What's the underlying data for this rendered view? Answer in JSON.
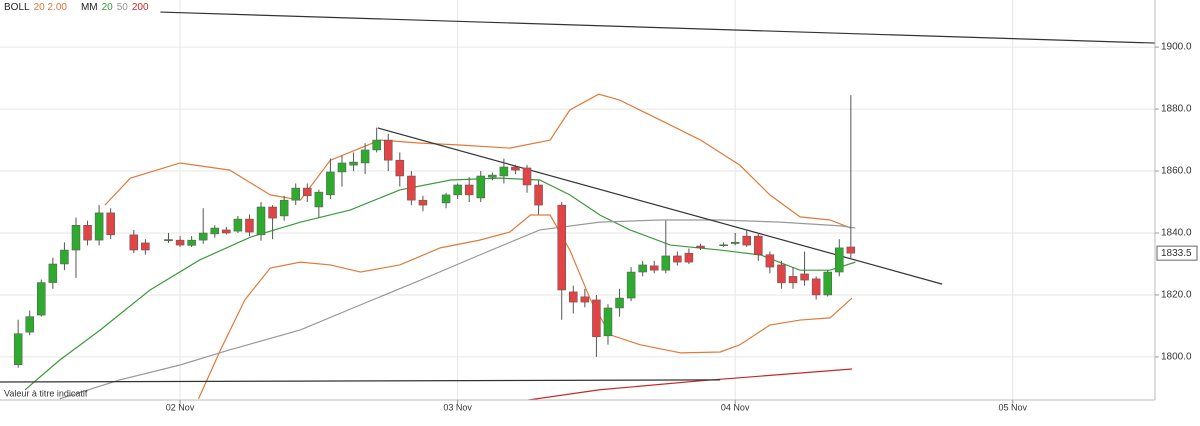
{
  "chart_data": {
    "type": "candlestick",
    "legend": [
      {
        "label": "BOLL",
        "params": [
          {
            "text": "20 2.00",
            "color": "#e07a3a"
          }
        ]
      },
      {
        "label": "MM",
        "params": [
          {
            "text": "20",
            "color": "#3c9a3c"
          },
          {
            "text": "50",
            "color": "#999999"
          },
          {
            "text": "200",
            "color": "#c62828"
          }
        ]
      }
    ],
    "note": "Valeur à titre indicatif",
    "last_price": 1833.5,
    "xlim": [
      -15.57,
      84.3
    ],
    "xticks": [
      {
        "value": 0,
        "label": "02 Nov"
      },
      {
        "value": 24,
        "label": "03 Nov"
      },
      {
        "value": 48,
        "label": "04 Nov"
      },
      {
        "value": 72,
        "label": "05 Nov"
      }
    ],
    "ylim": [
      1786.1,
      1915.2
    ],
    "yticks": [
      {
        "value": 1800,
        "label": "1800.0"
      },
      {
        "value": 1820,
        "label": "1820.0"
      },
      {
        "value": 1840,
        "label": "1840.0"
      },
      {
        "value": 1860,
        "label": "1860.0"
      },
      {
        "value": 1880,
        "label": "1880.0"
      },
      {
        "value": 1900,
        "label": "1900.0"
      }
    ],
    "grid": true,
    "up_color": "#2eaa2e",
    "down_color": "#e04444",
    "candles": {
      "x": [
        -14,
        -13,
        -12,
        -11,
        -10,
        -9,
        -8,
        -7,
        -6,
        -4,
        -3,
        -1,
        0,
        1,
        2,
        3,
        4,
        5,
        6,
        7,
        8,
        9,
        10,
        11,
        12,
        13,
        14,
        15,
        16,
        17,
        18,
        19,
        20,
        21,
        23,
        24,
        25,
        26,
        27,
        28,
        29,
        30,
        31,
        33,
        34,
        35,
        36,
        37,
        38,
        39,
        40,
        41,
        42,
        43,
        44,
        45,
        47,
        48,
        49,
        50,
        51,
        52,
        53,
        54,
        55,
        56,
        57,
        58
      ],
      "open": [
        1797.5,
        1808,
        1813.5,
        1824,
        1830,
        1834.5,
        1842.5,
        1837.7,
        1846.5,
        1839.4,
        1836.8,
        1837.5,
        1837.7,
        1836,
        1837.7,
        1839.7,
        1841,
        1840.6,
        1844.5,
        1839.4,
        1848.4,
        1845.5,
        1850.6,
        1854.5,
        1848.4,
        1852.3,
        1859.7,
        1861.9,
        1862.6,
        1866.8,
        1870,
        1863.5,
        1858.4,
        1850.6,
        1849.7,
        1852.3,
        1855.5,
        1851.3,
        1858,
        1858.4,
        1861.3,
        1861,
        1855.5,
        1849,
        1821,
        1819.4,
        1818.4,
        1806.8,
        1815.8,
        1819,
        1827.4,
        1829.4,
        1828,
        1832.6,
        1833.5,
        1835.8,
        1836,
        1836.6,
        1839,
        1839,
        1833,
        1829.7,
        1826,
        1826.8,
        1825.2,
        1820,
        1827.4,
        1835.5
      ],
      "high": [
        1812,
        1815,
        1825,
        1832,
        1837,
        1845,
        1844,
        1849,
        1848,
        1841,
        1838,
        1840,
        1839,
        1839,
        1848,
        1842.5,
        1842,
        1845.5,
        1846,
        1850,
        1849,
        1852,
        1856,
        1856,
        1854,
        1864,
        1865,
        1866,
        1869,
        1874,
        1872,
        1866,
        1860,
        1852,
        1853,
        1856,
        1858,
        1860,
        1859.5,
        1864,
        1862,
        1862,
        1857,
        1850,
        1823,
        1822,
        1820,
        1817,
        1822,
        1829,
        1831,
        1831,
        1844,
        1834,
        1835,
        1836.5,
        1837,
        1840,
        1841,
        1840,
        1834,
        1831,
        1829,
        1834,
        1826,
        1828,
        1838,
        1884.5
      ],
      "low": [
        1796.5,
        1807,
        1813,
        1822,
        1828,
        1825.5,
        1836,
        1836,
        1838,
        1833.5,
        1833,
        1836.8,
        1835.5,
        1835.5,
        1836.5,
        1838.5,
        1839.5,
        1840,
        1839,
        1837.5,
        1838,
        1844,
        1849,
        1850,
        1845,
        1851,
        1855,
        1860,
        1859,
        1866,
        1860,
        1855,
        1849,
        1847,
        1848,
        1851,
        1850,
        1850,
        1857,
        1856,
        1859,
        1853,
        1846,
        1812,
        1814,
        1816,
        1800,
        1804,
        1813,
        1818,
        1826,
        1827,
        1827,
        1829.5,
        1830,
        1834.5,
        1835.5,
        1836,
        1835.5,
        1831,
        1827,
        1822,
        1822,
        1823,
        1818.5,
        1819.5,
        1826,
        1831.5
      ],
      "close": [
        1807.5,
        1813,
        1824,
        1830,
        1834.5,
        1842.5,
        1837.7,
        1846.5,
        1839.4,
        1834.5,
        1834.5,
        1837.9,
        1836.1,
        1837.7,
        1840,
        1841.6,
        1840,
        1844.5,
        1840.3,
        1848.4,
        1844.8,
        1850.6,
        1854.5,
        1852,
        1853.2,
        1859.7,
        1862.6,
        1862.9,
        1866.8,
        1870,
        1863.5,
        1858.4,
        1850.6,
        1849,
        1852.3,
        1855.5,
        1852.3,
        1858.4,
        1858.7,
        1861.3,
        1860.3,
        1855.5,
        1849,
        1821.6,
        1817.7,
        1817.7,
        1806.5,
        1815.8,
        1819,
        1827.4,
        1829.7,
        1828,
        1832.6,
        1830.6,
        1830.6,
        1835.2,
        1836.2,
        1837,
        1836.1,
        1833,
        1829,
        1823.9,
        1823.9,
        1824.8,
        1820,
        1827.4,
        1835.2,
        1833.5
      ]
    },
    "lines": [
      {
        "color": "#e07a3a",
        "x": [
          -6.5,
          -4.3,
          0,
          4.3,
          7.8,
          10.4,
          13,
          17.3,
          20.8,
          24.2,
          28.5,
          32,
          33.7,
          36.2,
          38,
          41.5,
          45,
          48.4,
          51,
          53.6,
          56.2,
          58
        ],
        "values": [
          1849,
          1857.7,
          1862.6,
          1860.3,
          1852.3,
          1850.6,
          1863.5,
          1870,
          1869,
          1868.4,
          1867.4,
          1870,
          1879.7,
          1884.8,
          1882.9,
          1876.5,
          1870,
          1861.9,
          1852.3,
          1845.2,
          1844.2,
          1841.6
        ]
      },
      {
        "color": "#e07a3a",
        "x": [
          1.6,
          3.5,
          5.6,
          7.8,
          10.4,
          13,
          15.6,
          19,
          22.5,
          25.9,
          28.5,
          30.3,
          32,
          33.7,
          35.5,
          37.2,
          39.8,
          43.3,
          46.7,
          48.4,
          51,
          53.6,
          56.2,
          58.1
        ],
        "values": [
          1786.5,
          1802.3,
          1818.4,
          1828.7,
          1830.6,
          1829.7,
          1827.4,
          1829.7,
          1835.2,
          1837.7,
          1840.3,
          1845.8,
          1845.8,
          1834.5,
          1818.4,
          1807.1,
          1803.9,
          1801.3,
          1801.6,
          1803.9,
          1810.3,
          1811.9,
          1812.6,
          1819
        ]
      },
      {
        "color": "#3c9a3c",
        "x": [
          -13.4,
          -10.4,
          -6.9,
          -2.6,
          1.7,
          6.1,
          10.4,
          14.7,
          19,
          23.4,
          27.7,
          31.1,
          33.7,
          36.3,
          38.9,
          42.4,
          46.7,
          50.2,
          53.6,
          56.2,
          58.4
        ],
        "values": [
          1789.4,
          1799,
          1808.7,
          1821.6,
          1831.3,
          1838.7,
          1843.5,
          1847.4,
          1853.9,
          1857.1,
          1857.7,
          1857.1,
          1852.3,
          1845.8,
          1841,
          1836.1,
          1834.5,
          1832.9,
          1828,
          1828,
          1830.6
        ]
      },
      {
        "color": "#999999",
        "x": [
          -10.4,
          -5.2,
          0,
          4.3,
          10.4,
          15.6,
          20.8,
          25.9,
          31.1,
          36.3,
          41.5,
          46.7,
          51.9,
          57.1,
          58.4
        ],
        "values": [
          1786.5,
          1792.6,
          1797.4,
          1802.3,
          1808.7,
          1816.8,
          1824.8,
          1832.9,
          1841,
          1843.5,
          1844.2,
          1844.2,
          1843.5,
          1842.3,
          1841.6
        ]
      },
      {
        "color": "#c62828",
        "x": [
          28.4,
          36.3,
          45,
          58.1
        ],
        "values": [
          1785.2,
          1789.4,
          1792.3,
          1796.1
        ]
      },
      {
        "color": "#333333",
        "x": [
          -1.7,
          84.3
        ],
        "values": [
          1911.3,
          1901.3
        ]
      },
      {
        "color": "#333333",
        "x": [
          17.1,
          65.9
        ],
        "values": [
          1873.9,
          1823.5
        ]
      },
      {
        "color": "#333333",
        "x": [
          -15.57,
          46.7
        ],
        "values": [
          1791.9,
          1792.6
        ]
      }
    ]
  }
}
